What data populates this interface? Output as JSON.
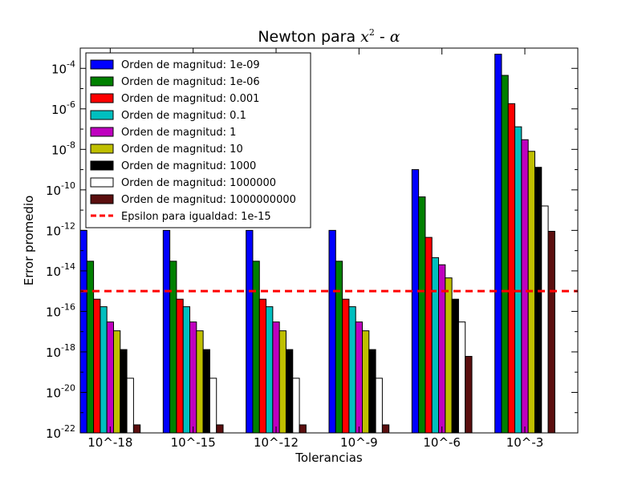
{
  "chart_data": {
    "type": "bar",
    "title_main": "Newton para ",
    "title_math_a": "x",
    "title_math_exp": "2",
    "title_sep": " - ",
    "title_math_b": "α",
    "xlabel": "Tolerancias",
    "ylabel": "Error promedio",
    "yscale": "log",
    "ylim": [
      1e-22,
      0.001
    ],
    "y_tick_labels": [
      {
        "base": "10",
        "exp": "-22",
        "value": 1e-22
      },
      {
        "base": "10",
        "exp": "-20",
        "value": 1e-20
      },
      {
        "base": "10",
        "exp": "-18",
        "value": 1e-18
      },
      {
        "base": "10",
        "exp": "-16",
        "value": 1e-16
      },
      {
        "base": "10",
        "exp": "-14",
        "value": 1e-14
      },
      {
        "base": "10",
        "exp": "-12",
        "value": 1e-12
      },
      {
        "base": "10",
        "exp": "-10",
        "value": 1e-10
      },
      {
        "base": "10",
        "exp": "-8",
        "value": 1e-08
      },
      {
        "base": "10",
        "exp": "-6",
        "value": 1e-06
      },
      {
        "base": "10",
        "exp": "-4",
        "value": 0.0001
      }
    ],
    "categories": [
      "10^-18",
      "10^-15",
      "10^-12",
      "10^-9",
      "10^-6",
      "10^-3"
    ],
    "legend_position": "upper-left",
    "series": [
      {
        "name": "Orden de magnitud: 1e-09",
        "color": "#0000ff",
        "values": [
          1e-12,
          1e-12,
          1e-12,
          1e-12,
          1e-09,
          0.0005
        ]
      },
      {
        "name": "Orden de magnitud: 1e-06",
        "color": "#008000",
        "values": [
          3e-14,
          3e-14,
          3e-14,
          3e-14,
          4.5e-11,
          4.5e-05
        ]
      },
      {
        "name": "Orden de magnitud: 0.001",
        "color": "#ff0000",
        "values": [
          4e-16,
          4e-16,
          4e-16,
          4e-16,
          4.5e-13,
          1.8e-06
        ]
      },
      {
        "name": "Orden de magnitud: 0.1",
        "color": "#00bfbf",
        "values": [
          1.7e-16,
          1.7e-16,
          1.7e-16,
          1.7e-16,
          4.5e-14,
          1.3e-07
        ]
      },
      {
        "name": "Orden de magnitud: 1",
        "color": "#bf00bf",
        "values": [
          3e-17,
          3e-17,
          3e-17,
          3e-17,
          2e-14,
          3e-08
        ]
      },
      {
        "name": "Orden de magnitud: 10",
        "color": "#bfbf00",
        "values": [
          1.1e-17,
          1.1e-17,
          1.1e-17,
          1.1e-17,
          4.5e-15,
          8e-09
        ]
      },
      {
        "name": "Orden de magnitud: 1000",
        "color": "#000000",
        "values": [
          1.3e-18,
          1.3e-18,
          1.3e-18,
          1.3e-18,
          4e-16,
          1.3e-09
        ]
      },
      {
        "name": "Orden de magnitud: 1000000",
        "color": "#ffffff",
        "values": [
          5e-20,
          5e-20,
          5e-20,
          5e-20,
          3e-17,
          1.6e-11
        ]
      },
      {
        "name": "Orden de magnitud: 1000000000",
        "color": "#5b0f0f",
        "values": [
          2.5e-22,
          2.5e-22,
          2.5e-22,
          2.5e-22,
          6e-19,
          9e-13
        ]
      }
    ],
    "reference_line": {
      "name": "Epsilon para igualdad: 1e-15",
      "value": 1e-15,
      "color": "#ff0000",
      "style": "dashed"
    }
  }
}
